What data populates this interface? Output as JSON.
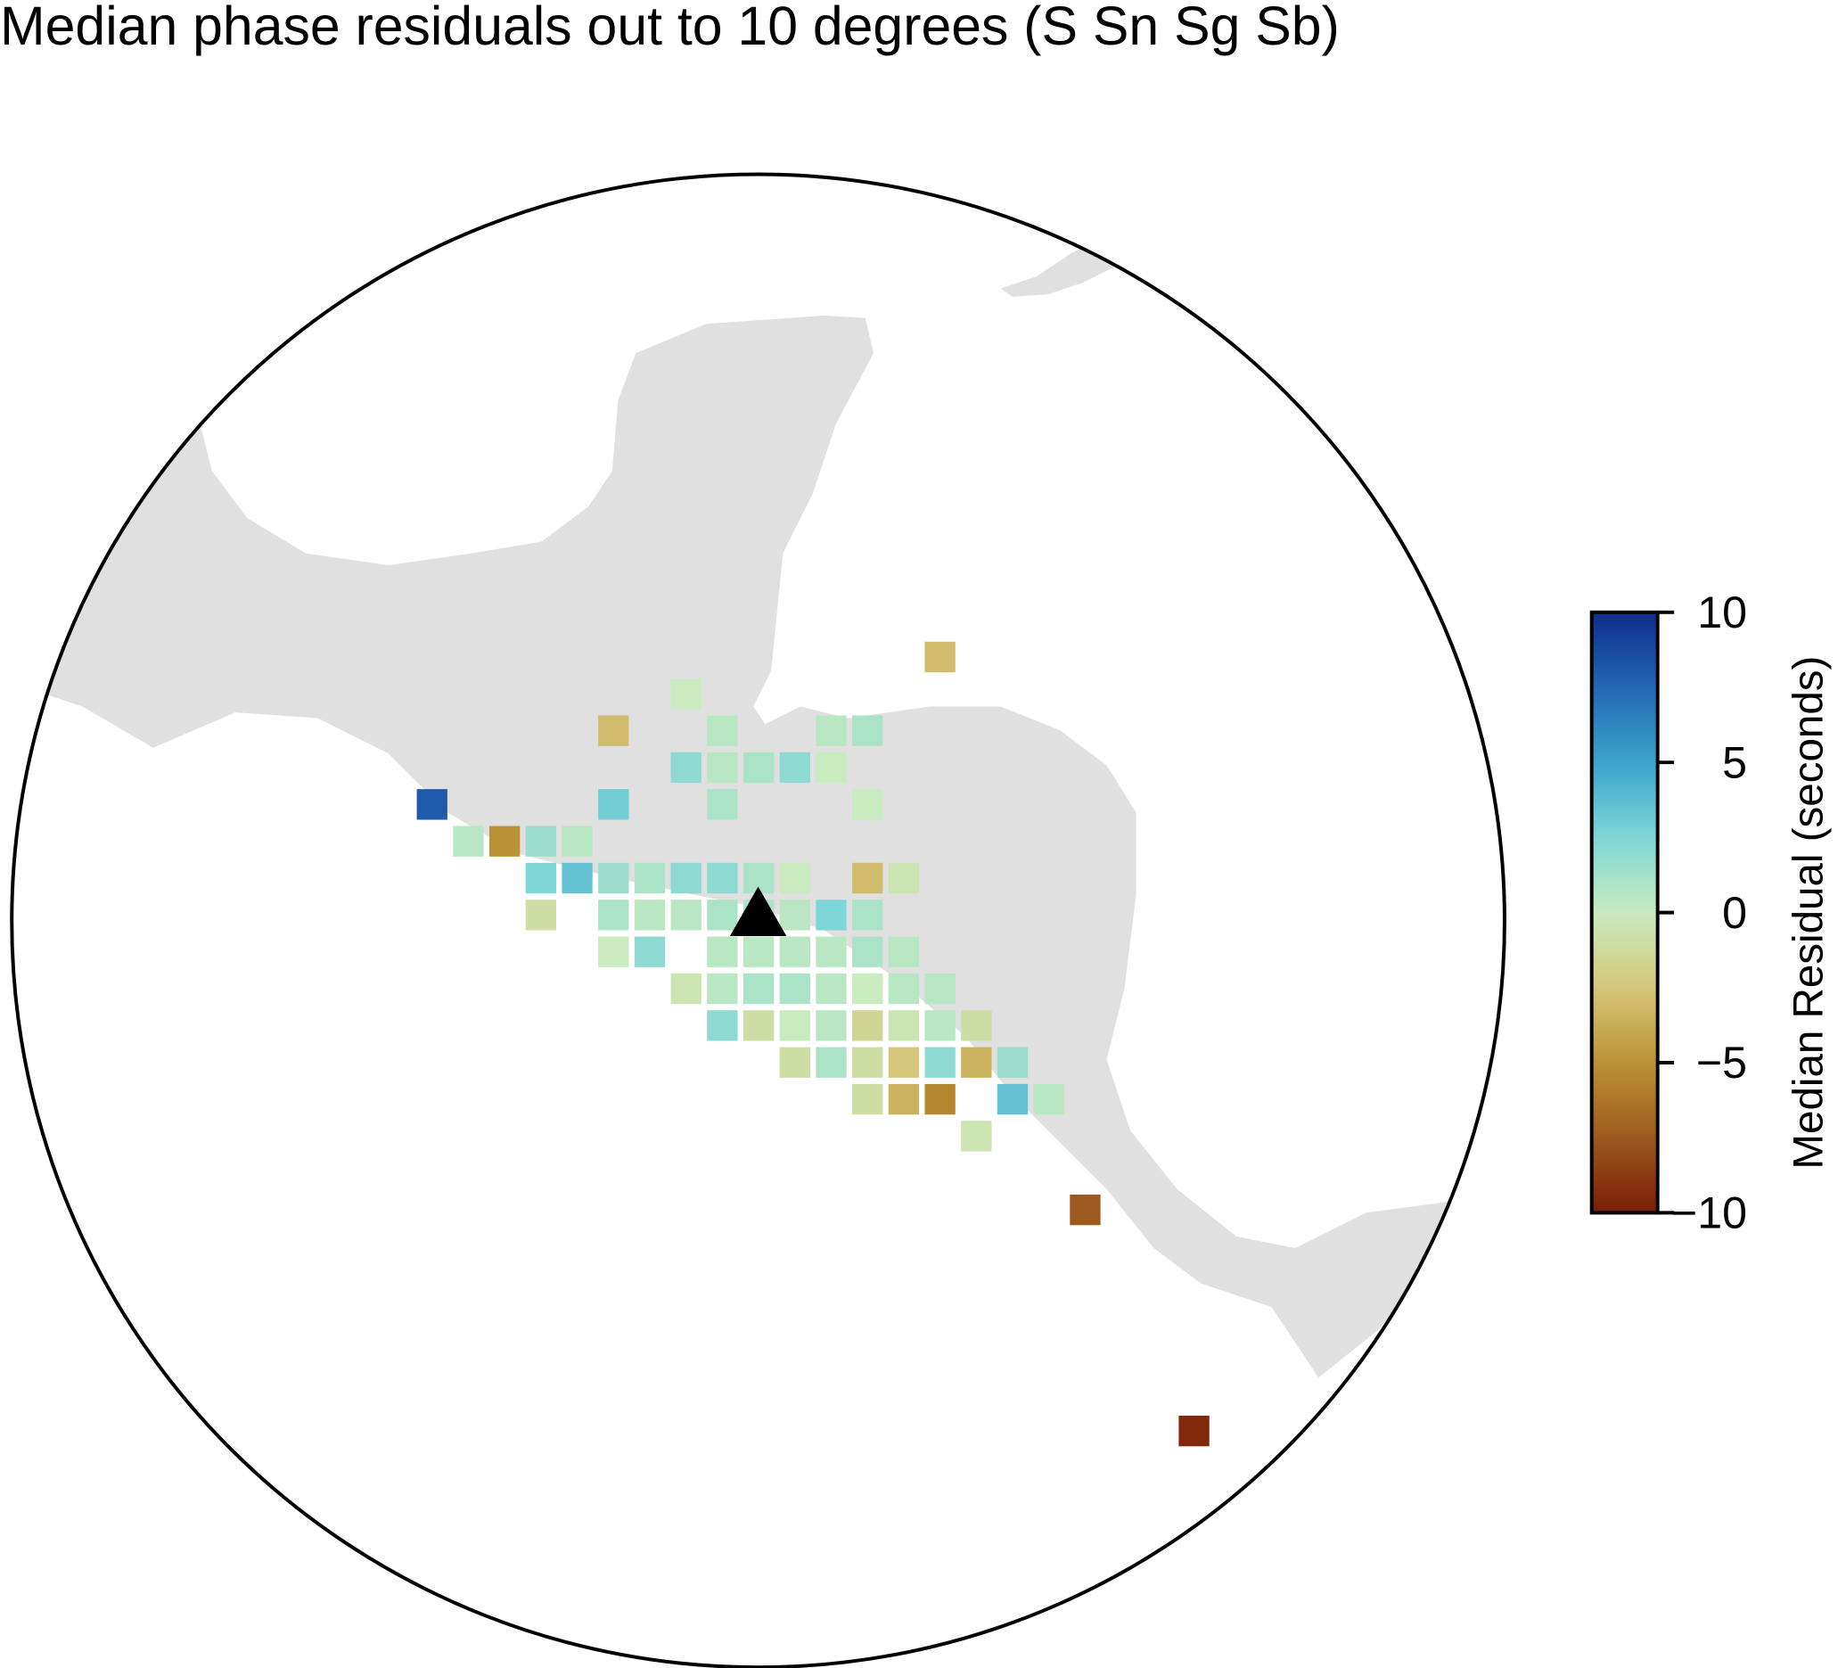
{
  "chart_data": {
    "type": "grid-map",
    "title": "Median phase residuals out to 10 degrees (S Sn Sg Sb)",
    "zlabel": "Median Residual (seconds)",
    "zlim": [
      -10,
      10
    ],
    "zticks": [
      10,
      5,
      0,
      {
        "value": -5,
        "label": "−5"
      },
      {
        "value": -10,
        "label": "−10"
      }
    ],
    "colormap": [
      "#7b1c08",
      "#9c5a1e",
      "#bc9236",
      "#d5c77a",
      "#c8ebc0",
      "#7fd6d6",
      "#3ba4cc",
      "#2467b3",
      "#0f2d8c"
    ],
    "cells": [
      [
        null,
        null,
        null,
        null,
        null,
        null,
        null,
        null,
        null,
        null,
        null,
        null,
        null,
        null,
        -3,
        null,
        null,
        null,
        null,
        null,
        null,
        null
      ],
      [
        null,
        null,
        null,
        null,
        null,
        null,
        null,
        0,
        null,
        null,
        null,
        null,
        null,
        null,
        null,
        null,
        null,
        null,
        null,
        null,
        null,
        null
      ],
      [
        null,
        null,
        null,
        null,
        null,
        -3,
        null,
        null,
        0.5,
        null,
        null,
        0.5,
        1,
        null,
        null,
        null,
        null,
        null,
        null,
        null,
        null,
        null
      ],
      [
        null,
        null,
        null,
        null,
        null,
        null,
        null,
        2,
        0.5,
        1,
        2,
        0,
        null,
        null,
        null,
        null,
        null,
        null,
        null,
        null,
        null,
        null
      ],
      [
        8,
        null,
        null,
        null,
        null,
        3,
        null,
        null,
        1,
        null,
        null,
        null,
        0,
        null,
        null,
        null,
        null,
        null,
        null,
        null,
        null,
        null
      ],
      [
        null,
        0.5,
        -5,
        1.5,
        0.5,
        null,
        null,
        null,
        null,
        null,
        null,
        null,
        null,
        null,
        null,
        null,
        null,
        null,
        null,
        null,
        null,
        null
      ],
      [
        null,
        null,
        null,
        2.5,
        3.5,
        1.5,
        1,
        2,
        2,
        1,
        0,
        null,
        -3,
        -0.5,
        null,
        null,
        null,
        null,
        null,
        null,
        null,
        null
      ],
      [
        null,
        null,
        null,
        -1,
        null,
        1,
        0.5,
        0.5,
        1,
        1,
        0.5,
        2.5,
        1,
        null,
        null,
        null,
        null,
        null,
        null,
        null,
        null,
        null
      ],
      [
        null,
        null,
        null,
        null,
        null,
        0,
        2,
        null,
        0.5,
        0.5,
        0.5,
        0.5,
        1,
        0.5,
        null,
        null,
        null,
        null,
        null,
        null,
        null,
        null
      ],
      [
        null,
        null,
        null,
        null,
        null,
        null,
        null,
        -0.5,
        0.5,
        1,
        1,
        0.5,
        0,
        0.5,
        0.5,
        null,
        null,
        null,
        null,
        null,
        null,
        null
      ],
      [
        null,
        null,
        null,
        null,
        null,
        null,
        null,
        null,
        2,
        -1,
        0,
        0.5,
        -1.5,
        -0.5,
        0.5,
        -1,
        null,
        null,
        null,
        null,
        null,
        null
      ],
      [
        null,
        null,
        null,
        null,
        null,
        null,
        null,
        null,
        null,
        null,
        -1,
        1,
        -1,
        -2.5,
        2,
        -3.5,
        1.5,
        null,
        null,
        null,
        null,
        null
      ],
      [
        null,
        null,
        null,
        null,
        null,
        null,
        null,
        null,
        null,
        null,
        null,
        null,
        -1,
        -3.5,
        -5.5,
        null,
        3.5,
        0.5,
        null,
        null,
        null,
        null
      ],
      [
        null,
        null,
        null,
        null,
        null,
        null,
        null,
        null,
        null,
        null,
        null,
        null,
        null,
        null,
        null,
        -0.5,
        null,
        null,
        null,
        null,
        null,
        null
      ],
      [
        null,
        null,
        null,
        null,
        null,
        null,
        null,
        null,
        null,
        null,
        null,
        null,
        null,
        null,
        null,
        null,
        null,
        null,
        null,
        null,
        null,
        null
      ],
      [
        null,
        null,
        null,
        null,
        null,
        null,
        null,
        null,
        null,
        null,
        null,
        null,
        null,
        null,
        null,
        null,
        null,
        null,
        -7.5,
        null,
        null,
        null
      ],
      [
        null,
        null,
        null,
        null,
        null,
        null,
        null,
        null,
        null,
        null,
        null,
        null,
        null,
        null,
        null,
        null,
        null,
        null,
        null,
        null,
        null,
        null
      ],
      [
        null,
        null,
        null,
        null,
        null,
        null,
        null,
        null,
        null,
        null,
        null,
        null,
        null,
        null,
        null,
        null,
        null,
        null,
        null,
        null,
        null,
        null
      ],
      [
        null,
        null,
        null,
        null,
        null,
        null,
        null,
        null,
        null,
        null,
        null,
        null,
        null,
        null,
        null,
        null,
        null,
        null,
        null,
        null,
        null,
        null
      ],
      [
        null,
        null,
        null,
        null,
        null,
        null,
        null,
        null,
        null,
        null,
        null,
        null,
        null,
        null,
        null,
        null,
        null,
        null,
        null,
        null,
        null,
        null
      ],
      [
        null,
        null,
        null,
        null,
        null,
        null,
        null,
        null,
        null,
        null,
        null,
        null,
        null,
        null,
        null,
        null,
        null,
        null,
        null,
        null,
        null,
        null
      ],
      [
        null,
        null,
        null,
        null,
        null,
        null,
        null,
        null,
        null,
        null,
        null,
        null,
        null,
        null,
        null,
        null,
        null,
        null,
        null,
        null,
        null,
        -9.5
      ]
    ]
  }
}
